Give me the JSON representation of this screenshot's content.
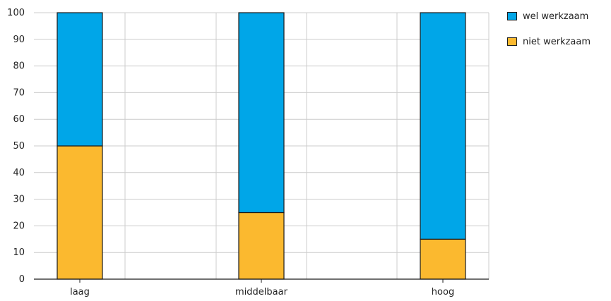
{
  "chart_data": {
    "type": "bar",
    "stacked": true,
    "categories": [
      "laag",
      "middelbaar",
      "hoog"
    ],
    "series": [
      {
        "name": "niet werkzaam",
        "values": [
          50,
          25,
          15
        ],
        "color": "#fbb92f"
      },
      {
        "name": "wel werkzaam",
        "values": [
          50,
          75,
          85
        ],
        "color": "#00a6e8"
      }
    ],
    "ylim": [
      0,
      100
    ],
    "yticks": [
      0,
      10,
      20,
      30,
      40,
      50,
      60,
      70,
      80,
      90,
      100
    ],
    "grid": true,
    "legend_position": "top-right",
    "legend_order": [
      "wel werkzaam",
      "niet werkzaam"
    ]
  }
}
